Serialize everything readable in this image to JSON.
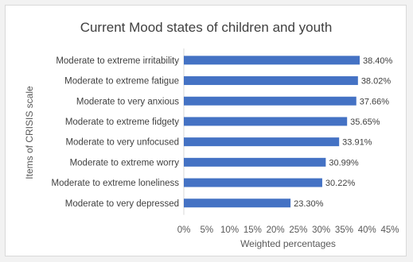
{
  "chart_data": {
    "type": "bar",
    "orientation": "horizontal",
    "title": "Current Mood states of children and youth",
    "xlabel": "Weighted percentages",
    "ylabel": "Items of CRISIS scale",
    "xlim": [
      0,
      45
    ],
    "xticks": [
      "0%",
      "5%",
      "10%",
      "15%",
      "20%",
      "25%",
      "30%",
      "35%",
      "40%",
      "45%"
    ],
    "grid": false,
    "legend": "none",
    "bar_color": "#4472c4",
    "categories": [
      "Moderate to extreme irritability",
      "Moderate to extreme fatigue",
      "Moderate to very anxious",
      "Moderate to extreme fidgety",
      "Moderate to very unfocused",
      "Moderate to extreme worry",
      "Moderate to extreme loneliness",
      "Moderate to very depressed"
    ],
    "values": [
      38.4,
      38.02,
      37.66,
      35.65,
      33.91,
      30.99,
      30.22,
      23.3
    ],
    "value_labels": [
      "38.40%",
      "38.02%",
      "37.66%",
      "35.65%",
      "33.91%",
      "30.99%",
      "30.22%",
      "23.30%"
    ]
  }
}
